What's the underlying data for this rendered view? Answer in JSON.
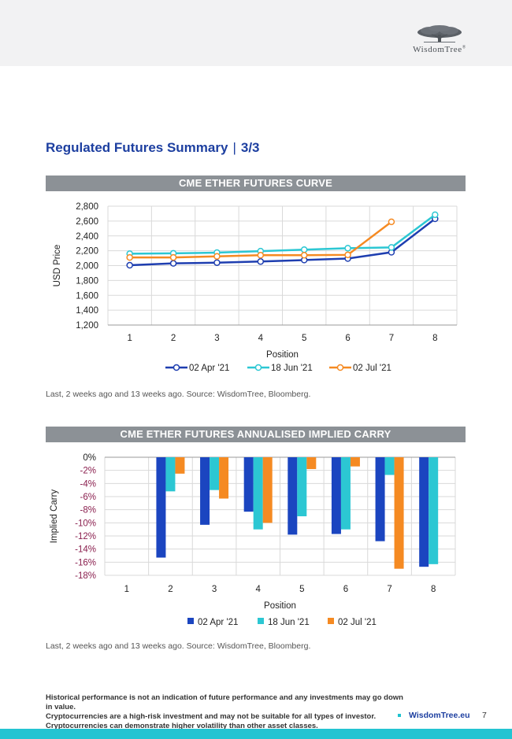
{
  "logo": {
    "text": "WisdomTree",
    "reg": "®"
  },
  "page_title": {
    "main": "Regulated Futures Summary",
    "separator": "|",
    "part": "3/3"
  },
  "chart_data": [
    {
      "type": "line",
      "title": "CME ETHER FUTURES CURVE",
      "xlabel": "Position",
      "ylabel": "USD Price",
      "categories": [
        "1",
        "2",
        "3",
        "4",
        "5",
        "6",
        "7",
        "8"
      ],
      "y_ticks": [
        "2,800",
        "2,600",
        "2,400",
        "2,200",
        "2,000",
        "1,800",
        "1,600",
        "1,400",
        "1,200"
      ],
      "ylim": [
        1200,
        2800
      ],
      "grid": true,
      "legend_position": "bottom",
      "series": [
        {
          "name": "02 Apr '21",
          "color": "#1e3eb0",
          "values": [
            2005,
            2030,
            2040,
            2055,
            2075,
            2095,
            2180,
            2630
          ]
        },
        {
          "name": "18 Jun '21",
          "color": "#2cc7d3",
          "values": [
            2160,
            2165,
            2175,
            2195,
            2215,
            2235,
            2245,
            2685
          ]
        },
        {
          "name": "02 Jul '21",
          "color": "#f58a22",
          "values": [
            2110,
            2110,
            2125,
            2140,
            2140,
            2145,
            2590,
            null
          ]
        }
      ]
    },
    {
      "type": "bar",
      "title": "CME ETHER FUTURES ANNUALISED IMPLIED CARRY",
      "xlabel": "Position",
      "ylabel": "Implied Carry",
      "categories": [
        "1",
        "2",
        "3",
        "4",
        "5",
        "6",
        "7",
        "8"
      ],
      "y_ticks": [
        "0%",
        "-2%",
        "-4%",
        "-6%",
        "-8%",
        "-10%",
        "-12%",
        "-14%",
        "-16%",
        "-18%"
      ],
      "ylim": [
        -18,
        0
      ],
      "grid": true,
      "legend_position": "bottom",
      "series": [
        {
          "name": "02 Apr '21",
          "color": "#1b45c0",
          "values": [
            null,
            -15.3,
            -10.3,
            -8.3,
            -11.8,
            -11.7,
            -12.8,
            -16.7
          ]
        },
        {
          "name": "18 Jun '21",
          "color": "#2cc7d3",
          "values": [
            null,
            -5.2,
            -5.0,
            -11.0,
            -9.0,
            -11.0,
            -2.7,
            -16.3
          ]
        },
        {
          "name": "02 Jul '21",
          "color": "#f58a22",
          "values": [
            null,
            -2.5,
            -6.3,
            -10.0,
            -1.8,
            -1.4,
            -17.0,
            null
          ]
        }
      ]
    }
  ],
  "captions": {
    "chart1": "Last, 2 weeks ago and 13 weeks ago. Source: WisdomTree, Bloomberg.",
    "chart2": "Last, 2 weeks ago and 13 weeks ago. Source: WisdomTree, Bloomberg."
  },
  "footer": {
    "disclaimer_lines": [
      "Historical performance is not an indication of future performance and any investments may go down in value.",
      "Cryptocurrencies are a high-risk investment and may not be suitable for all types of investor.",
      "Cryptocurrencies can demonstrate higher volatility than other asset classes."
    ],
    "site": "WisdomTree.eu",
    "page_number": "7"
  },
  "colors": {
    "brand_blue": "#1d3fa0",
    "accent_teal": "#23c4d2",
    "banner_grey": "#8c9196",
    "negative_tick": "#8a1f4e"
  }
}
